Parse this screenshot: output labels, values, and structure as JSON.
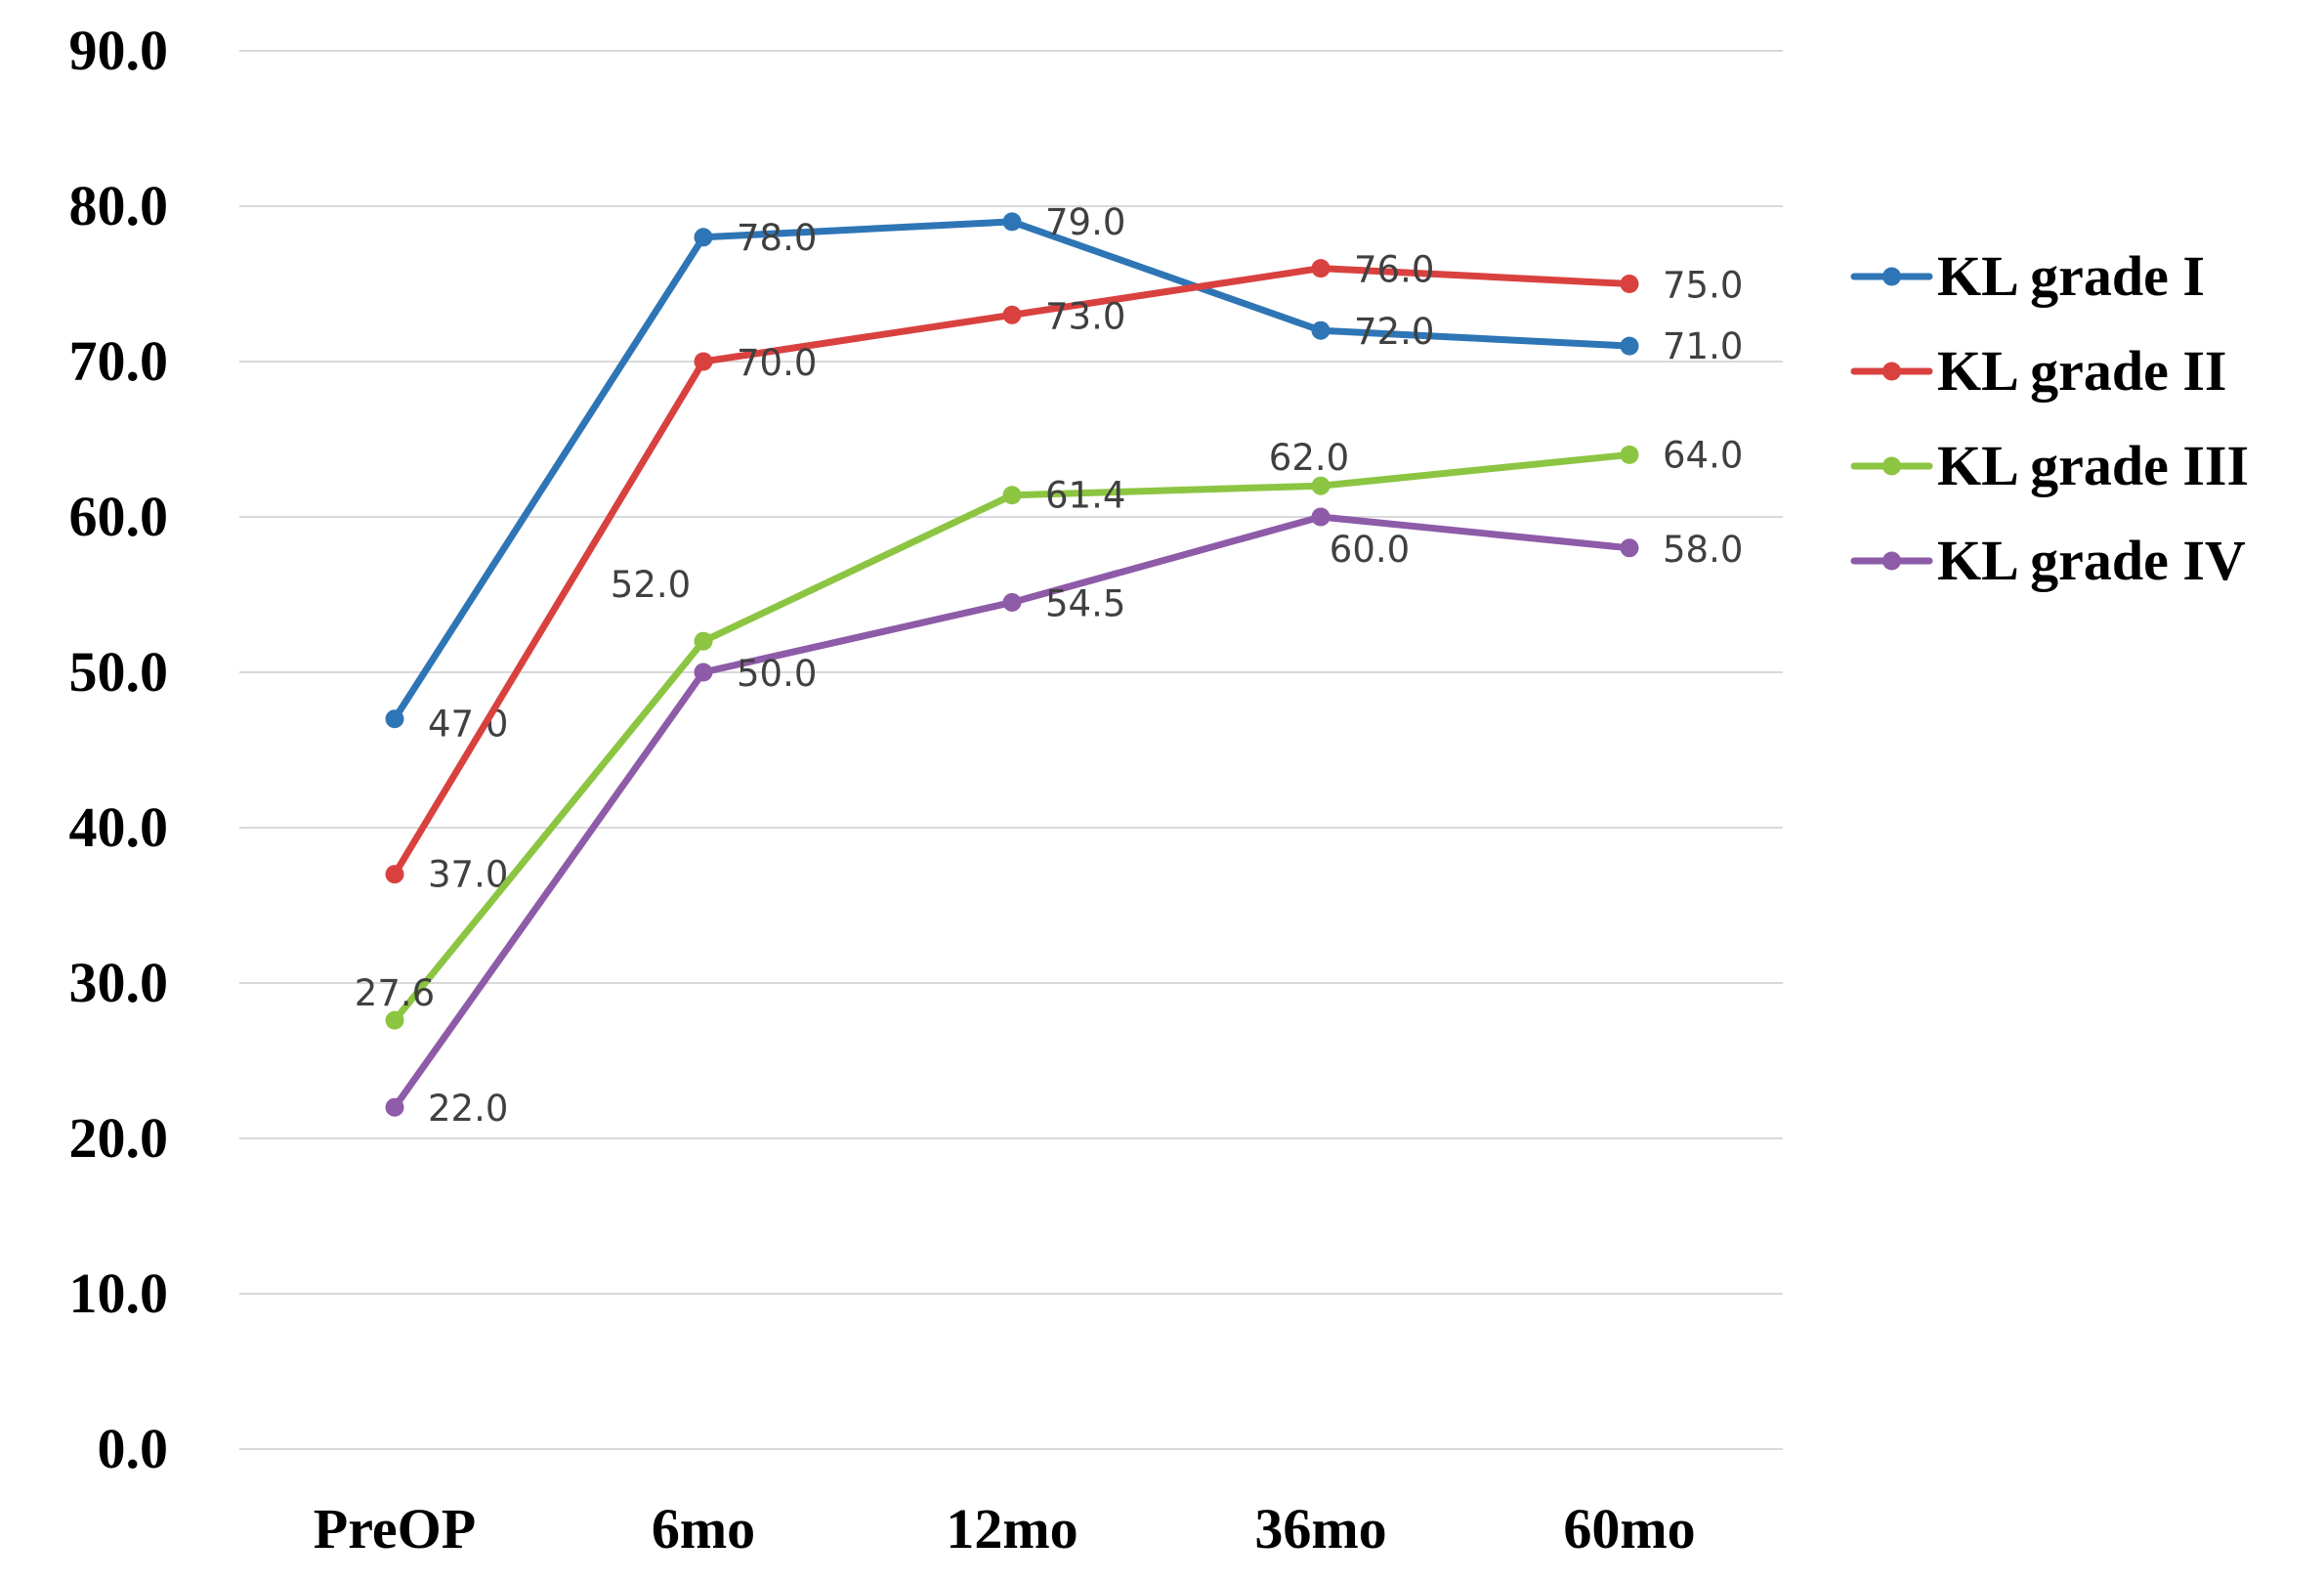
{
  "chart_data": {
    "type": "line",
    "title": "",
    "xlabel": "",
    "ylabel": "",
    "categories": [
      "PreOP",
      "6mo",
      "12mo",
      "36mo",
      "60mo"
    ],
    "ylim": [
      0,
      90
    ],
    "ytick_step": 10,
    "ytick_labels": [
      "0.0",
      "10.0",
      "20.0",
      "30.0",
      "40.0",
      "50.0",
      "60.0",
      "70.0",
      "80.0",
      "90.0"
    ],
    "grid": true,
    "legend_position": "right",
    "series": [
      {
        "name": "KL grade I",
        "color": "#2e75b6",
        "values": [
          47.0,
          78.0,
          79.0,
          72.0,
          71.0
        ],
        "labels": [
          "47.0",
          "78.0",
          "79.0",
          "72.0",
          "71.0"
        ]
      },
      {
        "name": "KL grade II",
        "color": "#d9413f",
        "values": [
          37.0,
          70.0,
          73.0,
          76.0,
          75.0
        ],
        "labels": [
          "37.0",
          "70.0",
          "73.0",
          "76.0",
          "75.0"
        ]
      },
      {
        "name": "KL grade III",
        "color": "#8cc542",
        "values": [
          27.6,
          52.0,
          61.4,
          62.0,
          64.0
        ],
        "labels": [
          "27.6",
          "52.0",
          "61.4",
          "62.0",
          "64.0"
        ]
      },
      {
        "name": "KL grade IV",
        "color": "#8e5ba8",
        "values": [
          22.0,
          50.0,
          54.5,
          60.0,
          58.0
        ],
        "labels": [
          "22.0",
          "50.0",
          "54.5",
          "60.0",
          "58.0"
        ]
      }
    ]
  }
}
